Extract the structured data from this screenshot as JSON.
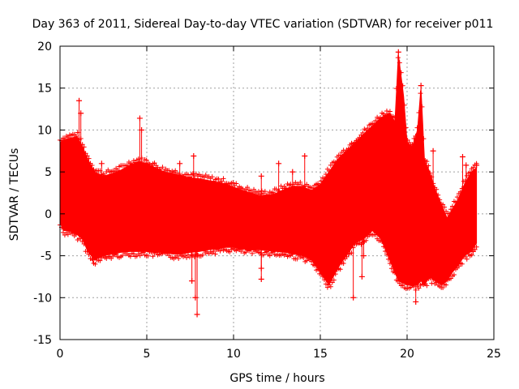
{
  "chart_data": {
    "type": "scatter",
    "title": "Day 363 of 2011, Sidereal Day-to-day VTEC variation (SDTVAR) for receiver p011",
    "xlabel": "GPS time / hours",
    "ylabel": "SDTVAR / TECUs",
    "xlim": [
      0,
      25
    ],
    "ylim": [
      -15,
      20
    ],
    "x_ticks": [
      0,
      5,
      10,
      15,
      20,
      25
    ],
    "y_ticks": [
      -15,
      -10,
      -5,
      0,
      5,
      10,
      15,
      20
    ],
    "x_tick_labels": [
      "0",
      "5",
      "10",
      "15",
      "20",
      "25"
    ],
    "y_tick_labels": [
      "-15",
      "-10",
      "-5",
      "0",
      "5",
      "10",
      "15",
      "20"
    ],
    "grid": true,
    "marker": "+",
    "color": "#ff0000",
    "envelope": {
      "x": [
        0.0,
        0.2,
        0.5,
        1.0,
        1.3,
        1.6,
        2.0,
        2.5,
        3.0,
        3.5,
        4.0,
        4.5,
        5.0,
        5.5,
        6.0,
        6.5,
        7.0,
        7.5,
        8.0,
        8.5,
        9.0,
        9.5,
        10.0,
        10.5,
        11.0,
        11.5,
        12.0,
        12.5,
        13.0,
        13.5,
        14.0,
        14.5,
        15.0,
        15.5,
        16.0,
        16.5,
        17.0,
        17.5,
        18.0,
        18.5,
        19.0,
        19.3,
        19.5,
        19.8,
        20.0,
        20.3,
        20.6,
        20.8,
        21.0,
        21.3,
        21.6,
        22.0,
        22.3,
        22.6,
        23.0,
        23.3,
        23.7,
        24.0
      ],
      "upper": [
        8.5,
        8.8,
        9.0,
        9.2,
        8.0,
        6.5,
        5.0,
        4.5,
        4.8,
        5.2,
        5.8,
        6.2,
        6.0,
        5.5,
        5.0,
        4.8,
        4.5,
        4.3,
        4.2,
        4.0,
        3.8,
        3.6,
        3.2,
        2.8,
        2.5,
        2.2,
        2.2,
        2.5,
        3.0,
        3.3,
        3.2,
        2.8,
        3.5,
        5.0,
        6.5,
        7.5,
        8.5,
        9.5,
        10.5,
        11.5,
        12.0,
        11.0,
        19.0,
        14.0,
        8.5,
        8.0,
        10.0,
        15.0,
        6.5,
        5.0,
        3.0,
        1.0,
        -0.5,
        0.5,
        2.0,
        3.5,
        5.0,
        5.5
      ],
      "lower": [
        -1.0,
        -2.0,
        -2.0,
        -2.5,
        -3.0,
        -4.5,
        -5.5,
        -5.0,
        -4.8,
        -4.6,
        -4.5,
        -4.5,
        -4.5,
        -4.6,
        -4.6,
        -4.8,
        -4.8,
        -4.6,
        -4.5,
        -4.3,
        -4.2,
        -4.0,
        -4.0,
        -4.2,
        -4.3,
        -4.3,
        -4.4,
        -4.5,
        -4.6,
        -4.8,
        -5.0,
        -5.5,
        -7.0,
        -8.5,
        -6.5,
        -5.0,
        -3.5,
        -3.0,
        -2.0,
        -3.0,
        -5.5,
        -7.0,
        -8.0,
        -8.3,
        -8.5,
        -8.5,
        -8.5,
        -8.0,
        -8.5,
        -7.5,
        -8.0,
        -8.5,
        -8.0,
        -7.0,
        -6.0,
        -5.0,
        -4.5,
        -3.5
      ]
    },
    "outliers": [
      {
        "x": 0.3,
        "y": 7.8
      },
      {
        "x": 1.1,
        "y": 13.5
      },
      {
        "x": 1.2,
        "y": 12.0
      },
      {
        "x": 1.9,
        "y": -5.5
      },
      {
        "x": 2.4,
        "y": 6.0
      },
      {
        "x": 4.6,
        "y": 11.4
      },
      {
        "x": 4.7,
        "y": 10.0
      },
      {
        "x": 6.9,
        "y": 6.0
      },
      {
        "x": 7.7,
        "y": 6.9
      },
      {
        "x": 7.9,
        "y": -12.0
      },
      {
        "x": 7.8,
        "y": -10.0
      },
      {
        "x": 7.6,
        "y": -8.0
      },
      {
        "x": 11.6,
        "y": -7.8
      },
      {
        "x": 11.6,
        "y": 4.5
      },
      {
        "x": 11.6,
        "y": -6.5
      },
      {
        "x": 12.6,
        "y": 6.0
      },
      {
        "x": 14.1,
        "y": 6.9
      },
      {
        "x": 13.4,
        "y": 5.0
      },
      {
        "x": 16.9,
        "y": -10.0
      },
      {
        "x": 17.4,
        "y": -7.5
      },
      {
        "x": 17.5,
        "y": -5.0
      },
      {
        "x": 19.5,
        "y": 19.3
      },
      {
        "x": 20.5,
        "y": -10.5
      },
      {
        "x": 20.8,
        "y": 15.3
      },
      {
        "x": 21.5,
        "y": 7.5
      },
      {
        "x": 23.2,
        "y": 6.8
      },
      {
        "x": 23.4,
        "y": 5.8
      },
      {
        "x": 24.0,
        "y": 5.8
      },
      {
        "x": 23.8,
        "y": -4.5
      }
    ]
  }
}
